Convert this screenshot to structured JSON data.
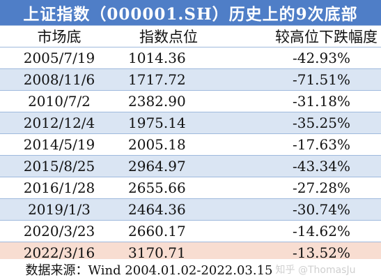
{
  "title": "上证指数（000001.SH）历史上的9次底部",
  "columns": [
    "市场底",
    "指数点位",
    "较高位下跌幅度"
  ],
  "rows": [
    {
      "date": "2005/7/19",
      "index": "1014.36",
      "drop": "-42.93%"
    },
    {
      "date": "2008/11/6",
      "index": "1717.72",
      "drop": "-71.51%"
    },
    {
      "date": "2010/7/2",
      "index": "2382.90",
      "drop": "-31.18%"
    },
    {
      "date": "2012/12/4",
      "index": "1975.14",
      "drop": "-35.25%"
    },
    {
      "date": "2014/5/19",
      "index": "2005.18",
      "drop": "-17.63%"
    },
    {
      "date": "2015/8/25",
      "index": "2964.97",
      "drop": "-43.34%"
    },
    {
      "date": "2016/1/28",
      "index": "2655.66",
      "drop": "-27.28%"
    },
    {
      "date": "2019/1/3",
      "index": "2464.36",
      "drop": "-30.74%"
    },
    {
      "date": "2020/3/23",
      "index": "2660.17",
      "drop": "-14.62%"
    },
    {
      "date": "2022/3/16",
      "index": "3170.71",
      "drop": "-13.52%"
    }
  ],
  "source": "数据来源：Wind 2004.01.02-2022.03.15",
  "watermark": "知乎 @ThomasJu",
  "colors": {
    "title_bg": "#4f7ec7",
    "row_alt": "#dae5f3",
    "row_highlight": "#f8ddd1"
  }
}
